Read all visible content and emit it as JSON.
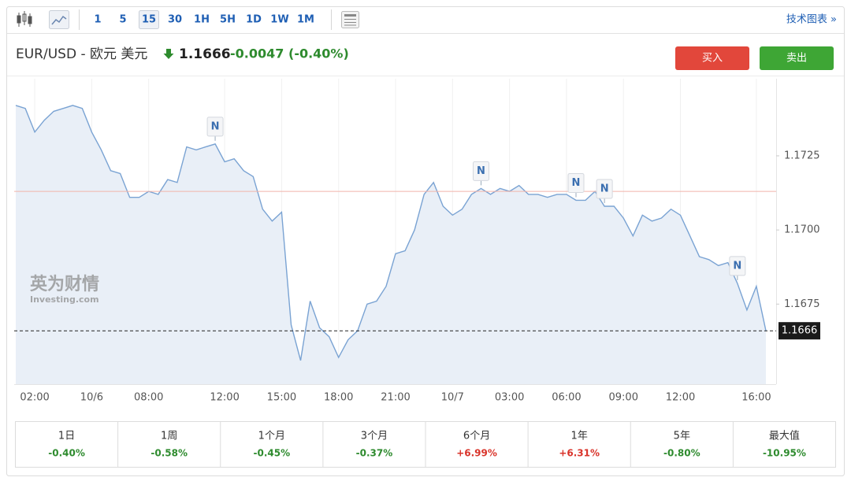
{
  "toolbar": {
    "intervals": [
      "1",
      "5",
      "15",
      "30",
      "1H",
      "5H",
      "1D",
      "1W",
      "1M"
    ],
    "active": "15",
    "link": "技术图表 »"
  },
  "header": {
    "symbol": "EUR/USD - 欧元 美元",
    "price": "1.1666",
    "change": "-0.0047",
    "change_pct": "(-0.40%)",
    "buy": "买入",
    "sell": "卖出"
  },
  "watermark": {
    "brand": "英为财情",
    "site": "Investing.com"
  },
  "chart_data": {
    "type": "area",
    "line_color": "#7aa3d3",
    "fill_color": "#e9eff7",
    "categories": [
      null,
      null,
      "02:00",
      null,
      null,
      null,
      null,
      null,
      "10/6",
      null,
      null,
      null,
      null,
      null,
      "08:00",
      null,
      null,
      null,
      null,
      null,
      null,
      null,
      "12:00",
      null,
      null,
      null,
      null,
      null,
      "15:00",
      null,
      null,
      null,
      null,
      null,
      "18:00",
      null,
      null,
      null,
      null,
      null,
      "21:00",
      null,
      null,
      null,
      null,
      null,
      "10/7",
      null,
      null,
      null,
      null,
      null,
      "03:00",
      null,
      null,
      null,
      null,
      null,
      "06:00",
      null,
      null,
      null,
      null,
      null,
      "09:00",
      null,
      null,
      null,
      null,
      null,
      "12:00",
      null,
      null,
      null,
      null,
      null,
      null,
      null,
      "16:00",
      null
    ],
    "series": [
      {
        "values": [
          1.1742,
          1.1741,
          1.1733,
          1.1737,
          1.174,
          1.1741,
          1.1742,
          1.1741,
          1.1733,
          1.1727,
          1.172,
          1.1719,
          1.1711,
          1.1711,
          1.1713,
          1.1712,
          1.1717,
          1.1716,
          1.1728,
          1.1727,
          1.1728,
          1.1729,
          1.1723,
          1.1724,
          1.172,
          1.1718,
          1.1707,
          1.1703,
          1.1706,
          1.1668,
          1.1656,
          1.1676,
          1.1667,
          1.1664,
          1.1657,
          1.1663,
          1.1666,
          1.1675,
          1.1676,
          1.1681,
          1.1692,
          1.1693,
          1.17,
          1.1712,
          1.1716,
          1.1708,
          1.1705,
          1.1707,
          1.1712,
          1.1714,
          1.1712,
          1.1714,
          1.1713,
          1.1715,
          1.1712,
          1.1712,
          1.1711,
          1.1712,
          1.1712,
          1.171,
          1.171,
          1.1713,
          1.1708,
          1.1708,
          1.1704,
          1.1698,
          1.1705,
          1.1703,
          1.1704,
          1.1707,
          1.1705,
          1.1698,
          1.1691,
          1.169,
          1.1688,
          1.1689,
          1.1682,
          1.1673,
          1.1681,
          1.1666
        ]
      }
    ],
    "ylim": [
      1.1648,
      1.1751
    ],
    "yticks": [
      1.1675,
      {
        "value": 1.17,
        "label": "1.1700"
      },
      1.1725
    ],
    "reference_line": 1.1713,
    "reference_color": "#f2b4aa",
    "current_value": 1.1666,
    "annotations": [
      {
        "text": "N",
        "index": 21
      },
      {
        "text": "N",
        "index": 49
      },
      {
        "text": "N",
        "index": 59
      },
      {
        "text": "N",
        "index": 62
      },
      {
        "text": "N",
        "index": 76
      }
    ]
  },
  "periods": [
    {
      "label": "1日",
      "change": "-0.40%",
      "color": "#2e8b2e"
    },
    {
      "label": "1周",
      "change": "-0.58%",
      "color": "#2e8b2e"
    },
    {
      "label": "1个月",
      "change": "-0.45%",
      "color": "#2e8b2e"
    },
    {
      "label": "3个月",
      "change": "-0.37%",
      "color": "#2e8b2e"
    },
    {
      "label": "6个月",
      "change": "+6.99%",
      "color": "#d9342b"
    },
    {
      "label": "1年",
      "change": "+6.31%",
      "color": "#d9342b"
    },
    {
      "label": "5年",
      "change": "-0.80%",
      "color": "#2e8b2e"
    },
    {
      "label": "最大值",
      "change": "-10.95%",
      "color": "#2e8b2e"
    }
  ]
}
